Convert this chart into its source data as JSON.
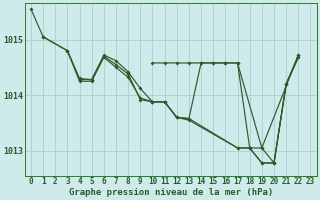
{
  "title": "Graphe pression niveau de la mer (hPa)",
  "background_color": "#ceeaea",
  "grid_color": "#aacece",
  "line_color": "#2a5c2a",
  "hours": [
    0,
    1,
    2,
    3,
    4,
    5,
    6,
    7,
    8,
    9,
    10,
    11,
    12,
    13,
    14,
    15,
    16,
    17,
    18,
    19,
    20,
    21,
    22,
    23
  ],
  "ylim_min": 1012.55,
  "ylim_max": 1015.65,
  "yticks": [
    1013,
    1014,
    1015
  ],
  "line1_x": [
    0,
    1,
    3,
    4,
    5,
    6,
    7,
    8,
    9,
    10,
    11,
    12,
    13,
    17,
    18,
    19,
    20,
    21,
    22
  ],
  "line1_y": [
    1015.55,
    1015.05,
    1014.8,
    1014.3,
    1014.28,
    1014.7,
    1014.55,
    1014.38,
    1013.92,
    1013.88,
    1013.88,
    1013.6,
    1013.58,
    1013.05,
    1013.05,
    1012.78,
    1012.78,
    1014.2,
    1014.68
  ],
  "line2_x": [
    1,
    3,
    4,
    5,
    6,
    7,
    8,
    9,
    10,
    11,
    12,
    13,
    14,
    15,
    16,
    17,
    18,
    19,
    20,
    21,
    22
  ],
  "line2_y": [
    1015.05,
    1014.8,
    1014.28,
    1014.28,
    1014.72,
    1014.62,
    1014.42,
    1014.12,
    1013.88,
    1013.88,
    1013.6,
    1013.58,
    1014.58,
    1014.58,
    1014.58,
    1014.58,
    1013.05,
    1013.05,
    1012.78,
    1014.2,
    1014.68
  ],
  "line3_x": [
    3,
    4,
    5,
    6,
    7,
    8,
    9,
    10,
    11,
    12,
    13,
    17,
    18,
    19,
    20,
    21,
    22
  ],
  "line3_y": [
    1014.8,
    1014.25,
    1014.25,
    1014.68,
    1014.5,
    1014.32,
    1013.95,
    1013.88,
    1013.88,
    1013.6,
    1013.55,
    1013.05,
    1013.05,
    1012.78,
    1012.78,
    1014.2,
    1014.72
  ],
  "line4_x": [
    10,
    11,
    12,
    13,
    14,
    15,
    16,
    17,
    19,
    22
  ],
  "line4_y": [
    1014.58,
    1014.58,
    1014.58,
    1014.58,
    1014.58,
    1014.58,
    1014.58,
    1014.58,
    1013.05,
    1014.72
  ],
  "marker_size": 2.0,
  "linewidth": 0.85,
  "tick_fontsize": 5.5,
  "title_fontsize": 6.5
}
